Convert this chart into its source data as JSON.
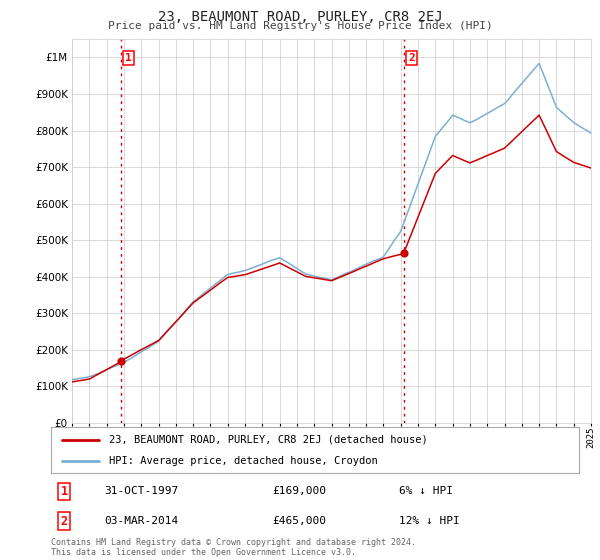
{
  "title": "23, BEAUMONT ROAD, PURLEY, CR8 2EJ",
  "subtitle": "Price paid vs. HM Land Registry's House Price Index (HPI)",
  "hpi_label": "HPI: Average price, detached house, Croydon",
  "property_label": "23, BEAUMONT ROAD, PURLEY, CR8 2EJ (detached house)",
  "transaction1_date": "31-OCT-1997",
  "transaction1_price": 169000,
  "transaction1_note": "6% ↓ HPI",
  "transaction2_date": "03-MAR-2014",
  "transaction2_price": 465000,
  "transaction2_note": "12% ↓ HPI",
  "footer": "Contains HM Land Registry data © Crown copyright and database right 2024.\nThis data is licensed under the Open Government Licence v3.0.",
  "hpi_color": "#7bafd4",
  "property_color": "#cc0000",
  "vline_color": "#cc0000",
  "dot_color": "#cc0000",
  "background_color": "#ffffff",
  "grid_color": "#cccccc",
  "ylim": [
    0,
    1050000
  ],
  "yticks": [
    0,
    100000,
    200000,
    300000,
    400000,
    500000,
    600000,
    700000,
    800000,
    900000,
    1000000
  ],
  "ytick_labels": [
    "£0",
    "£100K",
    "£200K",
    "£300K",
    "£400K",
    "£500K",
    "£600K",
    "£700K",
    "£800K",
    "£900K",
    "£1M"
  ],
  "year_start": 1995,
  "year_end": 2025,
  "transaction1_year": 1997.83,
  "transaction2_year": 2014.17
}
